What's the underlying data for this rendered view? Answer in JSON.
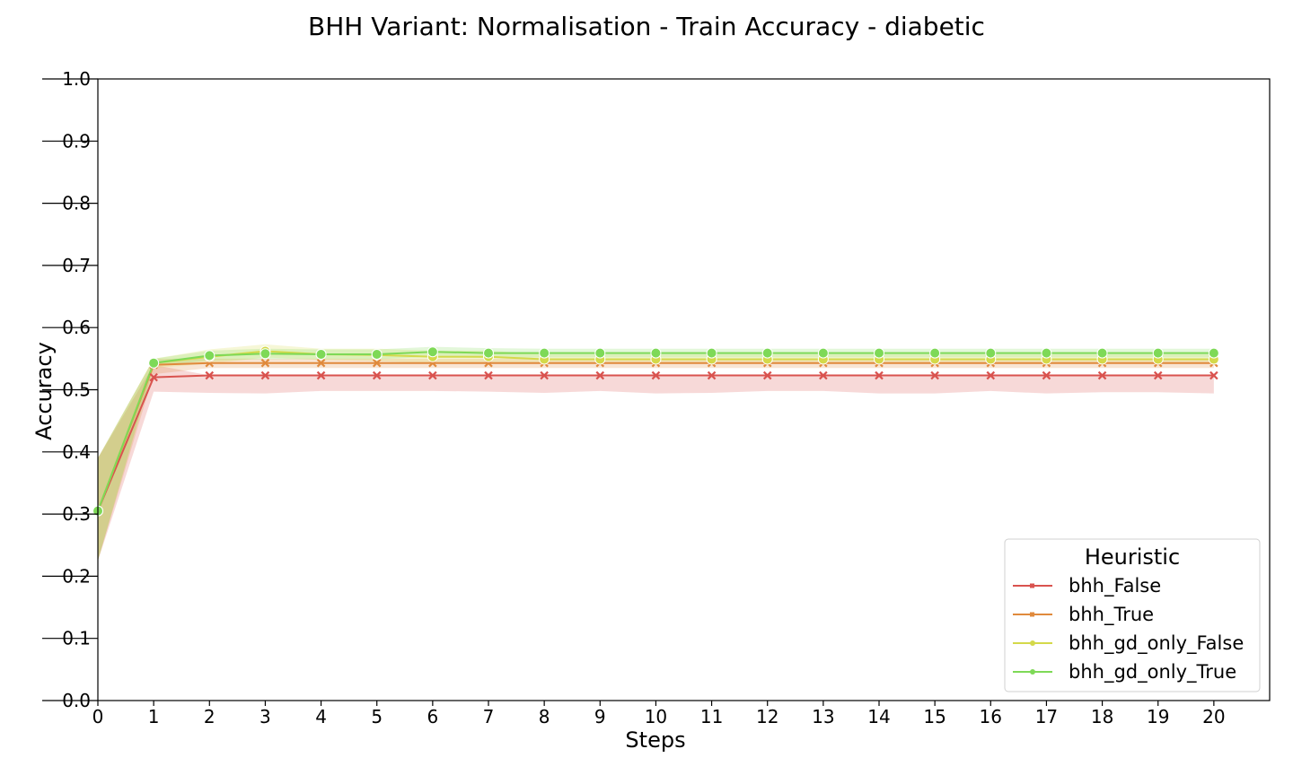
{
  "chart_data": {
    "type": "line",
    "title": "BHH Variant: Normalisation - Train Accuracy - diabetic",
    "xlabel": "Steps",
    "ylabel": "Accuracy",
    "xlim": [
      0,
      21
    ],
    "ylim": [
      0.0,
      1.0
    ],
    "x_ticks": [
      0,
      1,
      2,
      3,
      4,
      5,
      6,
      7,
      8,
      9,
      10,
      11,
      12,
      13,
      14,
      15,
      16,
      17,
      18,
      19,
      20
    ],
    "y_ticks": [
      0.0,
      0.1,
      0.2,
      0.3,
      0.4,
      0.5,
      0.6,
      0.7,
      0.8,
      0.9,
      1.0
    ],
    "y_tick_labels": [
      "0.0",
      "0.1",
      "0.2",
      "0.3",
      "0.4",
      "0.5",
      "0.6",
      "0.7",
      "0.8",
      "0.9",
      "1.0"
    ],
    "grid": false,
    "legend": {
      "title": "Heuristic",
      "placement": "bottom-right"
    },
    "x": [
      0,
      1,
      2,
      3,
      4,
      5,
      6,
      7,
      8,
      9,
      10,
      11,
      12,
      13,
      14,
      15,
      16,
      17,
      18,
      19,
      20
    ],
    "series": [
      {
        "name": "bhh_False",
        "color": "#d9534f",
        "marker": "x",
        "values": [
          0.305,
          0.52,
          0.523,
          0.523,
          0.523,
          0.523,
          0.523,
          0.523,
          0.523,
          0.523,
          0.523,
          0.523,
          0.523,
          0.523,
          0.523,
          0.523,
          0.523,
          0.523,
          0.523,
          0.523,
          0.523
        ],
        "ci_low": [
          0.225,
          0.497,
          0.495,
          0.494,
          0.498,
          0.498,
          0.498,
          0.497,
          0.495,
          0.498,
          0.494,
          0.495,
          0.498,
          0.498,
          0.494,
          0.494,
          0.498,
          0.494,
          0.496,
          0.496,
          0.494
        ],
        "ci_high": [
          0.39,
          0.54,
          0.523,
          0.523,
          0.523,
          0.523,
          0.523,
          0.523,
          0.523,
          0.523,
          0.523,
          0.523,
          0.523,
          0.523,
          0.523,
          0.523,
          0.523,
          0.523,
          0.523,
          0.523,
          0.523
        ]
      },
      {
        "name": "bhh_True",
        "color": "#e08a3c",
        "marker": "x",
        "values": [
          0.305,
          0.54,
          0.543,
          0.543,
          0.543,
          0.543,
          0.543,
          0.543,
          0.543,
          0.543,
          0.543,
          0.543,
          0.543,
          0.543,
          0.543,
          0.543,
          0.543,
          0.543,
          0.543,
          0.543,
          0.543
        ],
        "ci_low": [
          0.225,
          0.525,
          0.535,
          0.535,
          0.535,
          0.535,
          0.535,
          0.535,
          0.535,
          0.535,
          0.535,
          0.535,
          0.535,
          0.535,
          0.535,
          0.535,
          0.535,
          0.535,
          0.535,
          0.535,
          0.535
        ],
        "ci_high": [
          0.39,
          0.55,
          0.55,
          0.55,
          0.55,
          0.55,
          0.55,
          0.55,
          0.55,
          0.55,
          0.55,
          0.55,
          0.55,
          0.55,
          0.55,
          0.55,
          0.55,
          0.55,
          0.55,
          0.55,
          0.55
        ]
      },
      {
        "name": "bhh_gd_only_False",
        "color": "#d4d94a",
        "marker": "o",
        "values": [
          0.305,
          0.543,
          0.553,
          0.562,
          0.557,
          0.556,
          0.553,
          0.553,
          0.549,
          0.549,
          0.549,
          0.549,
          0.549,
          0.549,
          0.549,
          0.549,
          0.549,
          0.549,
          0.549,
          0.549,
          0.549
        ],
        "ci_low": [
          0.225,
          0.535,
          0.542,
          0.552,
          0.548,
          0.546,
          0.543,
          0.543,
          0.542,
          0.542,
          0.542,
          0.542,
          0.542,
          0.542,
          0.542,
          0.542,
          0.542,
          0.542,
          0.542,
          0.542,
          0.542
        ],
        "ci_high": [
          0.39,
          0.55,
          0.565,
          0.573,
          0.566,
          0.566,
          0.563,
          0.563,
          0.557,
          0.557,
          0.557,
          0.557,
          0.557,
          0.557,
          0.557,
          0.557,
          0.557,
          0.557,
          0.557,
          0.557,
          0.557
        ]
      },
      {
        "name": "bhh_gd_only_True",
        "color": "#7ed957",
        "marker": "o",
        "values": [
          0.305,
          0.543,
          0.555,
          0.558,
          0.557,
          0.557,
          0.561,
          0.559,
          0.559,
          0.559,
          0.559,
          0.559,
          0.559,
          0.559,
          0.559,
          0.559,
          0.559,
          0.559,
          0.559,
          0.559,
          0.559
        ],
        "ci_low": [
          0.225,
          0.538,
          0.547,
          0.549,
          0.549,
          0.549,
          0.553,
          0.551,
          0.552,
          0.552,
          0.552,
          0.552,
          0.552,
          0.552,
          0.552,
          0.552,
          0.552,
          0.552,
          0.552,
          0.552,
          0.552
        ],
        "ci_high": [
          0.39,
          0.55,
          0.563,
          0.566,
          0.565,
          0.565,
          0.569,
          0.567,
          0.566,
          0.566,
          0.566,
          0.566,
          0.566,
          0.566,
          0.566,
          0.566,
          0.566,
          0.566,
          0.566,
          0.566,
          0.566
        ]
      }
    ]
  }
}
